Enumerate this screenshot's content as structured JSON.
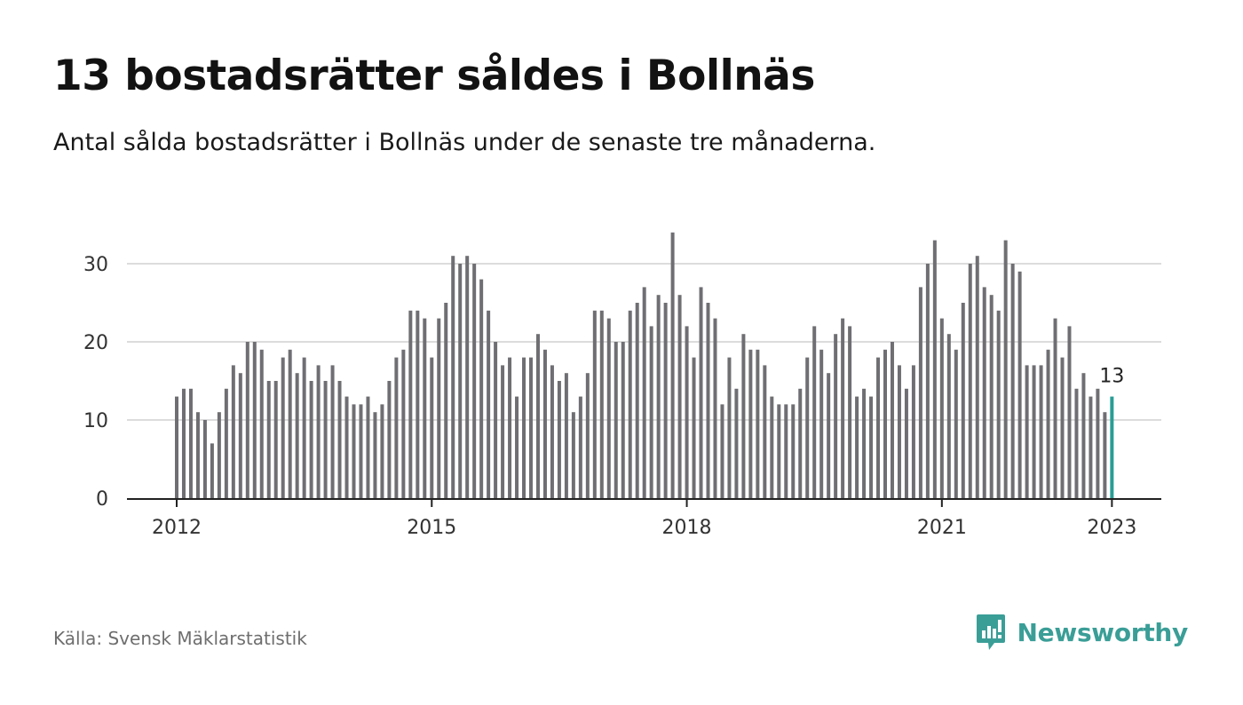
{
  "header": {
    "title": "13 bostadsrätter såldes i Bollnäs",
    "subtitle": "Antal sålda bostadsrätter i Bollnäs under de senaste tre månaderna."
  },
  "footer": {
    "source": "Källa: Svensk Mäklarstatistik",
    "brand": "Newsworthy",
    "brand_icon": "newsworthy-logo-icon"
  },
  "colors": {
    "bar": "#6f6f73",
    "highlight": "#2a9d95",
    "grid": "#dcdcdc",
    "axis": "#222222",
    "brand": "#3a9e97"
  },
  "chart_data": {
    "type": "bar",
    "x_start": "2012-01",
    "x_end": "2023-01",
    "xticks": [
      "2012",
      "2015",
      "2018",
      "2021",
      "2023"
    ],
    "yticks": [
      0,
      10,
      20,
      30
    ],
    "ylim": [
      0,
      36
    ],
    "grid": true,
    "highlight_label": "13",
    "values": [
      13,
      14,
      14,
      11,
      10,
      7,
      11,
      14,
      17,
      16,
      20,
      20,
      19,
      15,
      15,
      18,
      19,
      16,
      18,
      15,
      17,
      15,
      17,
      15,
      13,
      12,
      12,
      13,
      11,
      12,
      15,
      18,
      19,
      24,
      24,
      23,
      18,
      23,
      25,
      31,
      30,
      31,
      30,
      28,
      24,
      20,
      17,
      18,
      13,
      18,
      18,
      21,
      19,
      17,
      15,
      16,
      11,
      13,
      16,
      24,
      24,
      23,
      20,
      20,
      24,
      25,
      27,
      22,
      26,
      25,
      34,
      26,
      22,
      18,
      27,
      25,
      23,
      12,
      18,
      14,
      21,
      19,
      19,
      17,
      13,
      12,
      12,
      12,
      14,
      18,
      22,
      19,
      16,
      21,
      23,
      22,
      13,
      14,
      13,
      18,
      19,
      20,
      17,
      14,
      17,
      27,
      30,
      33,
      23,
      21,
      19,
      25,
      30,
      31,
      27,
      26,
      24,
      33,
      30,
      29,
      17,
      17,
      17,
      19,
      23,
      18,
      22,
      14,
      16,
      13,
      14,
      11,
      13
    ]
  }
}
